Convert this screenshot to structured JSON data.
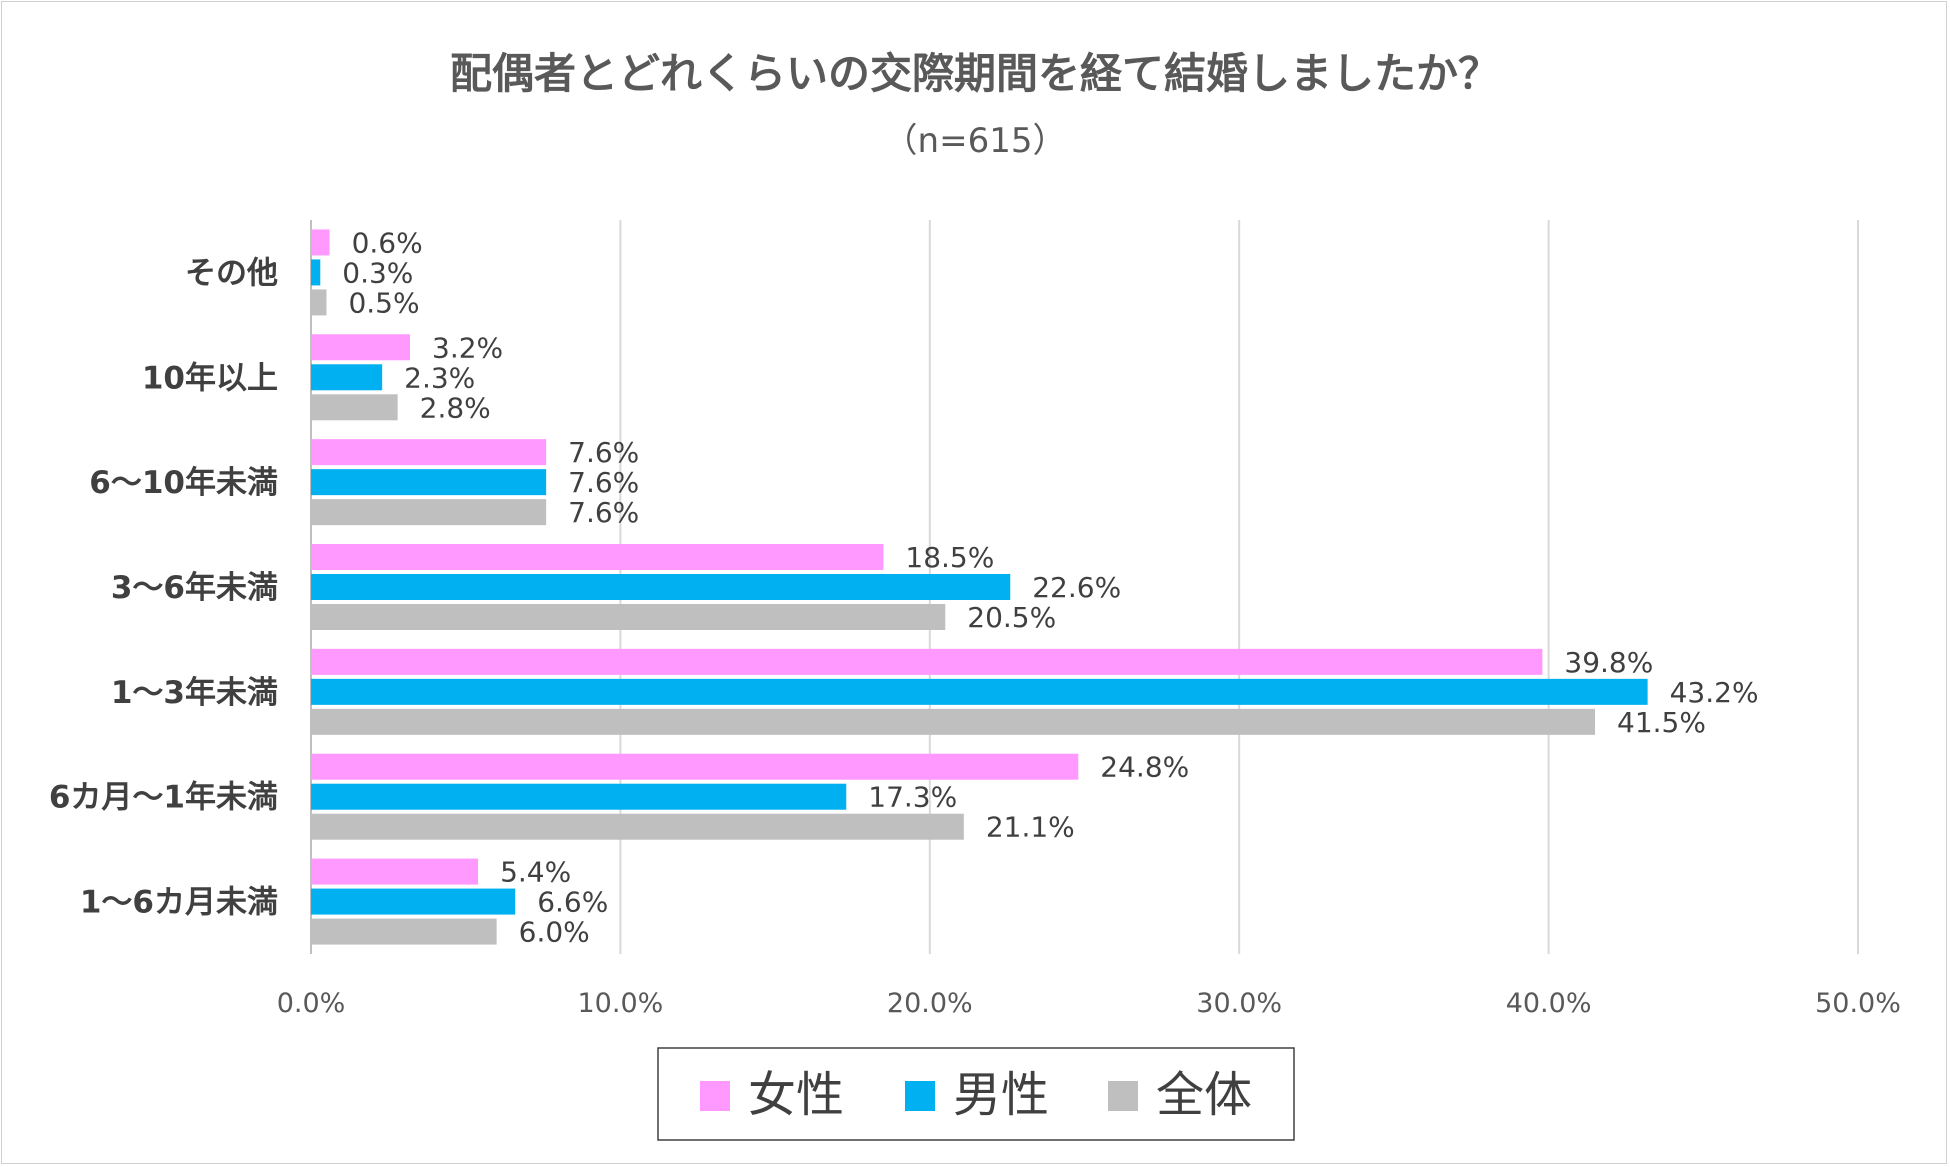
{
  "chart_data": {
    "type": "bar",
    "orientation": "horizontal",
    "title": "配偶者とどれくらいの交際期間を経て結婚しましたか？",
    "subtitle": "（n=615）",
    "categories": [
      "その他",
      "10年以上",
      "6～10年未満",
      "3～6年未満",
      "1～3年未満",
      "6カ月～1年未満",
      "1～6カ月未満"
    ],
    "series": [
      {
        "name": "女性",
        "color": "#FF99FF",
        "values": [
          0.6,
          3.2,
          7.6,
          18.5,
          39.8,
          24.8,
          5.4
        ],
        "labels": [
          "0.6%",
          "3.2%",
          "7.6%",
          "18.5%",
          "39.8%",
          "24.8%",
          "5.4%"
        ]
      },
      {
        "name": "男性",
        "color": "#00B0F0",
        "values": [
          0.3,
          2.3,
          7.6,
          22.6,
          43.2,
          17.3,
          6.6
        ],
        "labels": [
          "0.3%",
          "2.3%",
          "7.6%",
          "22.6%",
          "43.2%",
          "17.3%",
          "6.6%"
        ]
      },
      {
        "name": "全体",
        "color": "#BFBFBF",
        "values": [
          0.5,
          2.8,
          7.6,
          20.5,
          41.5,
          21.1,
          6.0
        ],
        "labels": [
          "0.5%",
          "2.8%",
          "7.6%",
          "20.5%",
          "41.5%",
          "21.1%",
          "6.0%"
        ]
      }
    ],
    "xlim": [
      0,
      50
    ],
    "xticks": [
      0,
      10,
      20,
      30,
      40,
      50
    ],
    "xtick_labels": [
      "0.0%",
      "10.0%",
      "20.0%",
      "30.0%",
      "40.0%",
      "50.0%"
    ],
    "grid": true,
    "legend_position": "bottom"
  }
}
